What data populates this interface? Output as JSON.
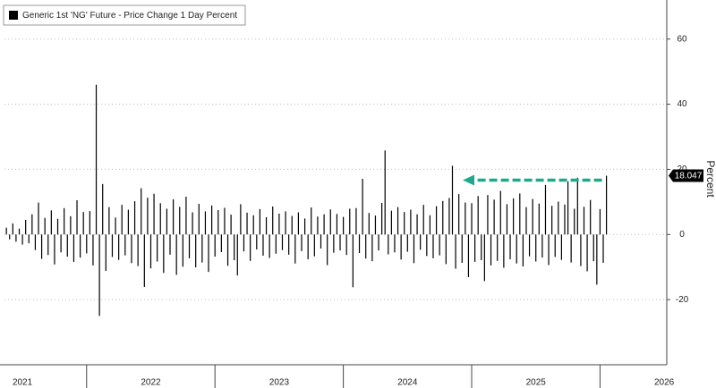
{
  "chart_data": {
    "type": "bar",
    "legend_position": "upper left",
    "y_label": "Percent",
    "grid": true,
    "xlim": [
      2021.36,
      2026.52
    ],
    "xticks": [
      {
        "value": 2021.5,
        "label": "2021"
      },
      {
        "value": 2022.5,
        "label": "2022"
      },
      {
        "value": 2023.5,
        "label": "2023"
      },
      {
        "value": 2024.5,
        "label": "2024"
      },
      {
        "value": 2025.5,
        "label": "2025"
      },
      {
        "value": 2026.5,
        "label": "2026"
      }
    ],
    "ylim": [
      -40,
      72
    ],
    "yticks": [
      -20,
      0,
      20,
      40,
      60
    ],
    "x": [
      2021.375,
      2021.4,
      2021.425,
      2021.45,
      2021.475,
      2021.5,
      2021.525,
      2021.55,
      2021.575,
      2021.6,
      2021.625,
      2021.65,
      2021.675,
      2021.7,
      2021.725,
      2021.75,
      2021.775,
      2021.8,
      2021.825,
      2021.85,
      2021.875,
      2021.9,
      2021.925,
      2021.95,
      2021.975,
      2022.0,
      2022.025,
      2022.05,
      2022.075,
      2022.1,
      2022.125,
      2022.15,
      2022.175,
      2022.2,
      2022.225,
      2022.25,
      2022.275,
      2022.3,
      2022.325,
      2022.35,
      2022.375,
      2022.4,
      2022.425,
      2022.45,
      2022.475,
      2022.5,
      2022.525,
      2022.55,
      2022.575,
      2022.6,
      2022.625,
      2022.65,
      2022.675,
      2022.7,
      2022.725,
      2022.75,
      2022.775,
      2022.8,
      2022.825,
      2022.85,
      2022.875,
      2022.9,
      2022.925,
      2022.95,
      2022.975,
      2023.0,
      2023.025,
      2023.05,
      2023.075,
      2023.1,
      2023.125,
      2023.15,
      2023.175,
      2023.2,
      2023.225,
      2023.25,
      2023.275,
      2023.3,
      2023.325,
      2023.35,
      2023.375,
      2023.4,
      2023.425,
      2023.45,
      2023.475,
      2023.5,
      2023.525,
      2023.55,
      2023.575,
      2023.6,
      2023.625,
      2023.65,
      2023.675,
      2023.7,
      2023.725,
      2023.75,
      2023.775,
      2023.8,
      2023.825,
      2023.85,
      2023.875,
      2023.9,
      2023.925,
      2023.95,
      2023.975,
      2024.0,
      2024.025,
      2024.05,
      2024.075,
      2024.1,
      2024.125,
      2024.15,
      2024.175,
      2024.2,
      2024.225,
      2024.25,
      2024.275,
      2024.3,
      2024.325,
      2024.35,
      2024.375,
      2024.4,
      2024.425,
      2024.45,
      2024.475,
      2024.5,
      2024.525,
      2024.55,
      2024.575,
      2024.6,
      2024.625,
      2024.65,
      2024.675,
      2024.7,
      2024.725,
      2024.75,
      2024.775,
      2024.8,
      2024.825,
      2024.85,
      2024.875,
      2024.9,
      2024.925,
      2024.95,
      2024.975,
      2025.0,
      2025.025,
      2025.05,
      2025.075,
      2025.1,
      2025.125,
      2025.15,
      2025.175,
      2025.2,
      2025.225,
      2025.25,
      2025.275,
      2025.3,
      2025.325,
      2025.35,
      2025.375,
      2025.4,
      2025.425,
      2025.45,
      2025.475,
      2025.5,
      2025.525,
      2025.55,
      2025.575,
      2025.6,
      2025.625,
      2025.65,
      2025.675,
      2025.7,
      2025.725,
      2025.75,
      2025.775,
      2025.8,
      2025.825,
      2025.85,
      2025.875,
      2025.9,
      2025.925,
      2025.95,
      2025.975,
      2026.0,
      2026.025,
      2026.05
    ],
    "series": [
      {
        "name": "Generic 1st 'NG' Future - Price Change 1 Day Percent",
        "color": "#000000",
        "values": [
          2.1,
          -1.5,
          3.4,
          -2.2,
          1.8,
          -3.1,
          4.5,
          -2.7,
          6.2,
          -4.8,
          9.8,
          -7.5,
          5.1,
          -6.3,
          7.4,
          -9.2,
          4.8,
          -5.5,
          8.1,
          -6.8,
          5.6,
          -8.4,
          10.5,
          -7.1,
          6.9,
          -5.8,
          7.2,
          -9.5,
          46,
          -25,
          15.5,
          -11.2,
          8.4,
          -6.9,
          5.2,
          -7.8,
          9.1,
          -6.4,
          7.6,
          -8.8,
          10.2,
          -9.7,
          14.2,
          -16.1,
          11.3,
          -10.4,
          12.5,
          -8.3,
          9.6,
          -11.8,
          7.9,
          -6.2,
          10.8,
          -12.4,
          8.5,
          -9.9,
          11.6,
          -7.3,
          6.8,
          -10.1,
          9.4,
          -8.6,
          7.1,
          -11.5,
          8.9,
          -6.8,
          7.5,
          -5.4,
          8.2,
          -9.6,
          6.1,
          -7.9,
          -12.6,
          9.3,
          -5.2,
          6.7,
          -8.1,
          5.9,
          -4.6,
          7.8,
          -6.5,
          5.3,
          -7.2,
          8.6,
          -5.9,
          6.4,
          -4.8,
          7.1,
          -6.2,
          5.7,
          -8.9,
          6.8,
          -5.1,
          4.9,
          -7.6,
          8.3,
          -6.7,
          5.5,
          -4.3,
          6.2,
          -9.4,
          7.7,
          -5.6,
          6.3,
          -4.9,
          5.4,
          -6.3,
          7.9,
          -16.2,
          8.1,
          -5.7,
          17.1,
          -7.4,
          6.6,
          -8.2,
          5.8,
          -4.9,
          9.7,
          25.8,
          -6.1,
          7.3,
          -5.5,
          8.4,
          -7.7,
          6.9,
          -5.3,
          7.6,
          -8.8,
          6.2,
          -4.7,
          9.1,
          -6.6,
          5.9,
          -7.3,
          8.7,
          -6.4,
          10.3,
          -9.1,
          11.2,
          21.1,
          -10.5,
          12.4,
          -8.7,
          9.8,
          -13.1,
          9.6,
          -8.4,
          11.8,
          -7.9,
          -14.3,
          12.1,
          -9.5,
          10.7,
          -8.1,
          13.4,
          -10.2,
          9.3,
          -7.6,
          11.1,
          -8.9,
          12.6,
          -9.8,
          8.4,
          -6.7,
          10.9,
          -8.3,
          9.5,
          -7.1,
          15.2,
          -9.4,
          8.8,
          -6.9,
          10.1,
          -7.8,
          9.2,
          16.3,
          -8.6,
          7.9,
          17.4,
          -9.7,
          8.5,
          -11.3,
          10.6,
          -8.2,
          -15.4,
          7.8,
          -8.7,
          18.047
        ]
      }
    ],
    "annotation_color": "#1fa98c"
  }
}
